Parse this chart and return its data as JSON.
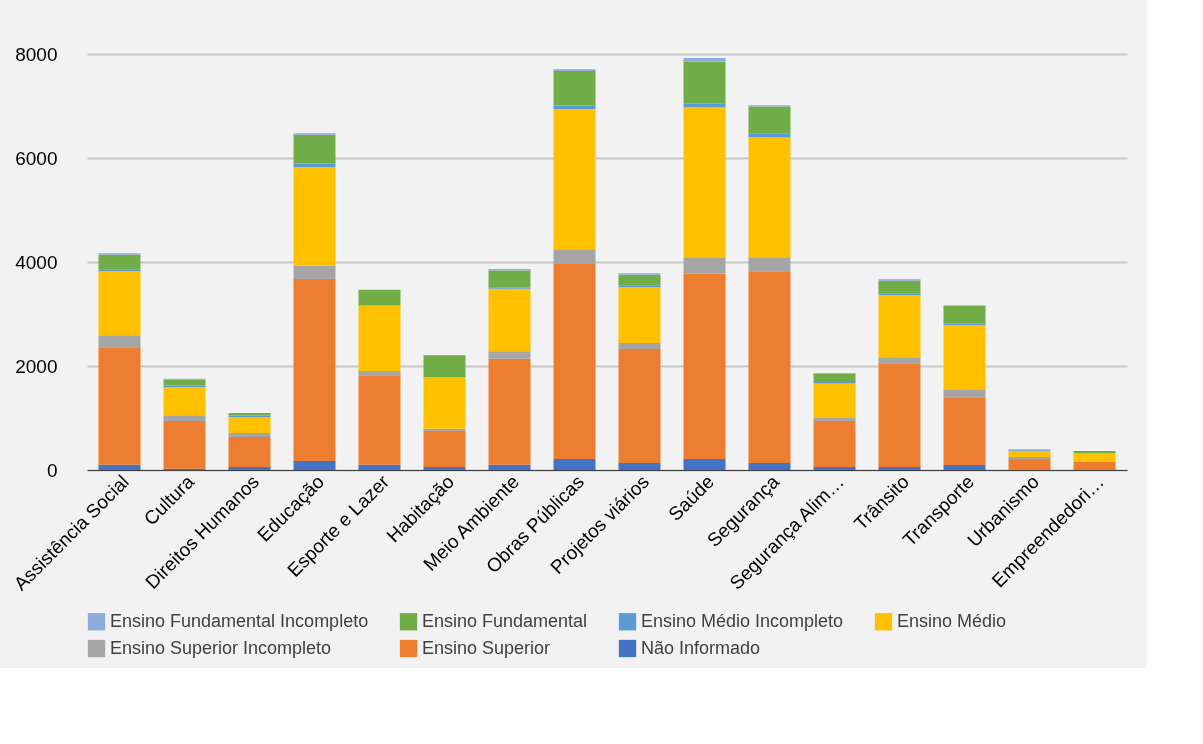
{
  "chart_data": {
    "type": "bar",
    "stacked": true,
    "categories": [
      "Assistência Social",
      "Cultura",
      "Direitos Humanos",
      "Educação",
      "Esporte e Lazer",
      "Habitação",
      "Meio Ambiente",
      "Obras Públicas",
      "Projetos viários",
      "Saúde",
      "Segurança",
      "Segurança Alim…",
      "Trânsito",
      "Transporte",
      "Urbanismo",
      "Empreendedori…"
    ],
    "series": [
      {
        "name": "Não Informado",
        "color": "#4472c4",
        "values": [
          100,
          25,
          60,
          175,
          100,
          60,
          100,
          210,
          135,
          210,
          135,
          60,
          60,
          95,
          0,
          0
        ]
      },
      {
        "name": "Ensino Superior",
        "color": "#ed7d31",
        "values": [
          2260,
          915,
          575,
          3500,
          1720,
          690,
          2040,
          3765,
          2190,
          3570,
          3685,
          880,
          1995,
          1305,
          210,
          165
        ]
      },
      {
        "name": "Ensino Superior Incompleto",
        "color": "#a5a5a5",
        "values": [
          230,
          115,
          75,
          260,
          85,
          45,
          145,
          270,
          115,
          310,
          270,
          75,
          115,
          155,
          40,
          0
        ]
      },
      {
        "name": "Ensino Médio",
        "color": "#ffc000",
        "values": [
          1230,
          540,
          310,
          1890,
          1260,
          990,
          1200,
          2695,
          1075,
          2885,
          2310,
          650,
          1190,
          1230,
          110,
          155
        ]
      },
      {
        "name": "Ensino Médio Incompleto",
        "color": "#5b9bd5",
        "values": [
          30,
          30,
          30,
          70,
          0,
          0,
          30,
          70,
          30,
          70,
          65,
          25,
          30,
          30,
          20,
          0
        ]
      },
      {
        "name": "Ensino Fundamental",
        "color": "#70ad47",
        "values": [
          290,
          115,
          45,
          550,
          300,
          420,
          320,
          665,
          210,
          805,
          525,
          160,
          250,
          350,
          0,
          45
        ]
      },
      {
        "name": "Ensino Fundamental Incompleto",
        "color": "#8faadc",
        "values": [
          30,
          15,
          0,
          30,
          0,
          0,
          30,
          30,
          30,
          75,
          25,
          15,
          30,
          0,
          20,
          0
        ]
      }
    ],
    "ylim": [
      0,
      8000
    ],
    "yticks": [
      0,
      2000,
      4000,
      6000,
      8000
    ],
    "grid": "y",
    "legend": "bottom"
  }
}
